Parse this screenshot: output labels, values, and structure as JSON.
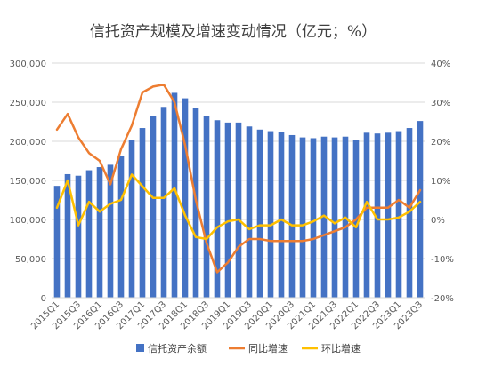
{
  "chart_data": {
    "type": "bar+line",
    "title": "信托资产规模及增速变动情况（亿元；%）",
    "categories": [
      "2015Q1",
      "2015Q2",
      "2015Q3",
      "2015Q4",
      "2016Q1",
      "2016Q2",
      "2016Q3",
      "2016Q4",
      "2017Q1",
      "2017Q2",
      "2017Q3",
      "2017Q4",
      "2018Q1",
      "2018Q2",
      "2018Q3",
      "2018Q4",
      "2019Q1",
      "2019Q2",
      "2019Q3",
      "2019Q4",
      "2020Q1",
      "2020Q2",
      "2020Q3",
      "2020Q4",
      "2021Q1",
      "2021Q2",
      "2021Q3",
      "2021Q4",
      "2022Q1",
      "2022Q2",
      "2022Q3",
      "2022Q4",
      "2023Q1",
      "2023Q2",
      "2023Q3"
    ],
    "x_tick_labels": [
      "2015Q1",
      "2015Q3",
      "2016Q1",
      "2016Q3",
      "2017Q1",
      "2017Q3",
      "2018Q1",
      "2018Q3",
      "2019Q1",
      "2019Q3",
      "2020Q1",
      "2020Q3",
      "2021Q1",
      "2021Q3",
      "2022Q1",
      "2022Q3",
      "2023Q1",
      "2023Q3"
    ],
    "left_axis": {
      "ylim": [
        0,
        300000
      ],
      "ticks": [
        "0",
        "50,000",
        "100,000",
        "150,000",
        "200,000",
        "250,000",
        "300,000"
      ]
    },
    "right_axis": {
      "ylim": [
        -20,
        40
      ],
      "ticks": [
        "-20%",
        "-10%",
        "0%",
        "10%",
        "20%",
        "30%",
        "40%"
      ]
    },
    "series": [
      {
        "name": "信托资产余额",
        "type": "bar",
        "axis": "left",
        "color": "#4472C4",
        "values": [
          143000,
          158000,
          156000,
          163000,
          167000,
          170000,
          181000,
          202000,
          217000,
          232000,
          244000,
          262000,
          255000,
          243000,
          232000,
          227000,
          224000,
          224000,
          219000,
          215000,
          213000,
          212000,
          208000,
          205000,
          204000,
          206000,
          205000,
          206000,
          202000,
          211000,
          210000,
          211000,
          213000,
          217000,
          226000
        ]
      },
      {
        "name": "同比增速",
        "type": "line",
        "axis": "right",
        "color": "#ED7D31",
        "values": [
          23,
          27,
          21,
          17,
          15,
          9,
          18,
          24,
          32.5,
          34,
          34.5,
          30,
          19,
          5,
          -6,
          -13.5,
          -11,
          -7,
          -5,
          -5,
          -5.5,
          -5.5,
          -5.5,
          -5.5,
          -5,
          -4,
          -3,
          -2,
          0,
          3,
          3,
          3,
          5,
          3,
          7.5
        ]
      },
      {
        "name": "环比增速",
        "type": "line",
        "axis": "right",
        "color": "#FFC000",
        "values": [
          3,
          10,
          -1.5,
          4.5,
          2,
          4,
          5,
          11.5,
          8.5,
          5.5,
          5.5,
          8,
          1,
          -4.5,
          -5,
          -2,
          -0.5,
          0,
          -2.5,
          -1.5,
          -1.5,
          0,
          -1.5,
          -1.5,
          -0.5,
          1,
          -1,
          0.5,
          -2,
          4.5,
          0,
          0,
          0.5,
          2,
          4.5
        ]
      }
    ],
    "legend": {
      "position": "bottom",
      "entries": [
        "信托资产余额",
        "同比增速",
        "环比增速"
      ]
    },
    "grid": true
  }
}
